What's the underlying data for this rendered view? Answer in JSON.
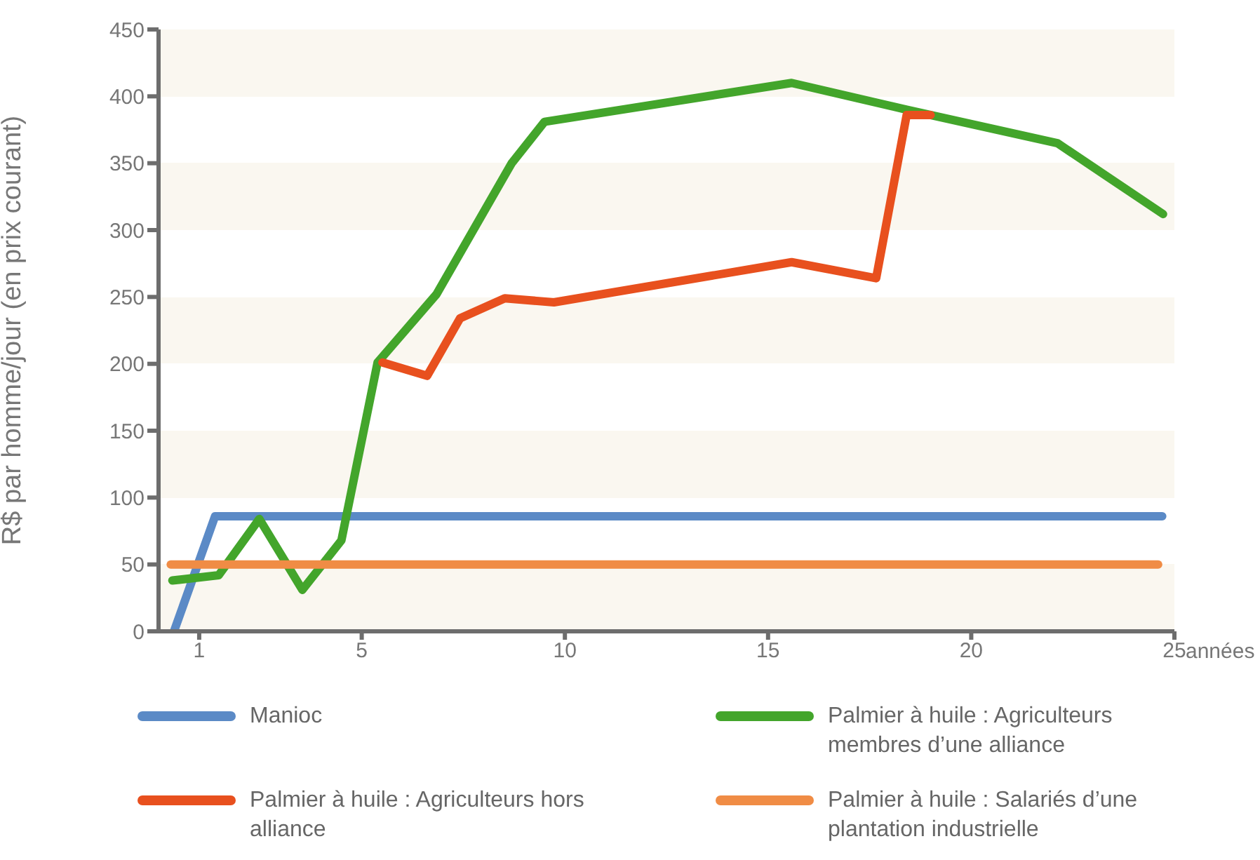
{
  "chart_data": {
    "type": "line",
    "xlabel": "années",
    "ylabel": "R$ par homme/jour (en prix courant)",
    "xlim": [
      0,
      25
    ],
    "xticks": [
      1,
      5,
      10,
      15,
      20,
      25
    ],
    "ylim": [
      0,
      450
    ],
    "yticks": [
      0,
      50,
      100,
      150,
      200,
      250,
      300,
      350,
      400,
      450
    ],
    "legend": "bottom",
    "marker": "none",
    "line_style": "solid",
    "series": [
      {
        "name": "Manioc",
        "color": "#5b8ac6",
        "x": [
          0.38,
          1.39,
          24.7
        ],
        "values": [
          0,
          86,
          86
        ]
      },
      {
        "name": "Palmier à huile : Agriculteurs membres d’une alliance",
        "color": "#43a52b",
        "x": [
          0.34,
          1.48,
          2.48,
          3.54,
          4.5,
          5.39,
          6.84,
          8.69,
          9.5,
          15.58,
          18.41,
          22.12,
          24.72
        ],
        "values": [
          38,
          42,
          84,
          31,
          68,
          201,
          252,
          350,
          381,
          410,
          390,
          365,
          312
        ]
      },
      {
        "name": "Palmier à huile : Agriculteurs hors alliance",
        "color": "#e8501e",
        "x": [
          5.51,
          6.61,
          7.42,
          8.52,
          9.73,
          15.58,
          17.66,
          18.41,
          19.0
        ],
        "values": [
          201,
          191,
          234,
          249,
          246,
          276,
          264,
          386,
          386
        ]
      },
      {
        "name": "Palmier à huile : Salariés d’une plantation industrielle",
        "color": "#f08c45",
        "x": [
          0.3,
          24.6
        ],
        "values": [
          50,
          50
        ]
      }
    ]
  }
}
